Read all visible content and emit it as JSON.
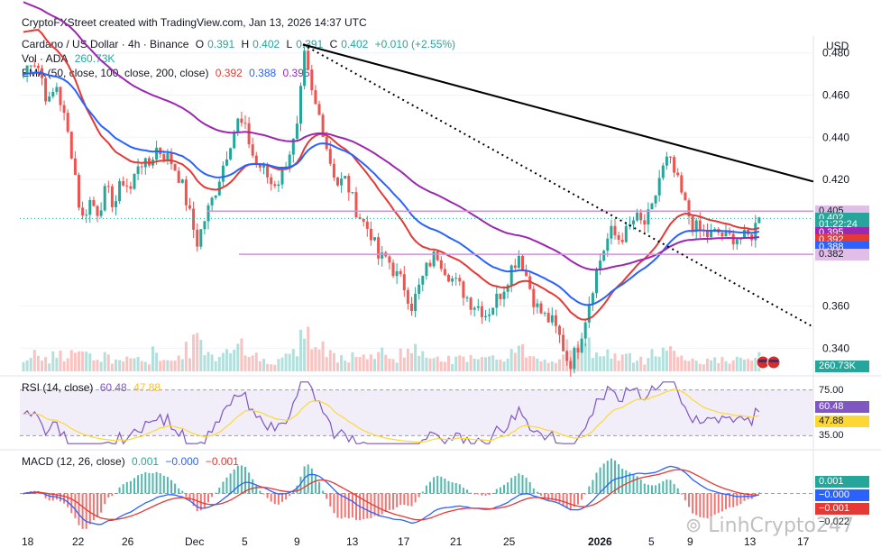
{
  "top_caption": "CryptoFXStreet created with TradingView.com, Jan 13, 2026 14:37 UTC",
  "legend": {
    "symbol": "Cardano / US Dollar · 4h · Binance",
    "o_label": "O",
    "o_val": "0.391",
    "h_label": "H",
    "h_val": "0.402",
    "l_label": "L",
    "l_val": "0.391",
    "c_label": "C",
    "c_val": "0.402",
    "change": "+0.010 (+2.55%)",
    "vol_label": "Vol · ADA",
    "vol_val": "260.73K",
    "ema_label": "EMA (50, close, 100, close, 200, close)",
    "ema50": "0.392",
    "ema100": "0.388",
    "ema200": "0.395"
  },
  "currency": "USD",
  "rsi_legend": {
    "label": "RSI (14, close)",
    "v1": "60.48",
    "v2": "47.88"
  },
  "macd_legend": {
    "label": "MACD (12, 26, close)",
    "v1": "0.001",
    "v2": "−0.000",
    "v3": "−0.001"
  },
  "watermark": "LinhCrypto247",
  "price_tags": [
    {
      "text": "0.405",
      "bg": "#e1bee7",
      "fg": "#131722",
      "price": 0.405
    },
    {
      "text": "0.402",
      "bg": "#26a69a",
      "fg": "#ffffff",
      "price": 0.4015
    },
    {
      "text": "01:22:24",
      "bg": "#26a69a",
      "fg": "#ffffff",
      "price": 0.3985
    },
    {
      "text": "0.395",
      "bg": "#9c27b0",
      "fg": "#ffffff",
      "price": 0.395
    },
    {
      "text": "0.392",
      "bg": "#e53935",
      "fg": "#ffffff",
      "price": 0.3915
    },
    {
      "text": "0.388",
      "bg": "#2962ff",
      "fg": "#ffffff",
      "price": 0.388
    },
    {
      "text": "0.382",
      "bg": "#e1bee7",
      "fg": "#131722",
      "price": 0.3845
    }
  ],
  "vol_tag": "260.73K",
  "rsi_tags": [
    {
      "text": "75.00",
      "bg": "#ffffff",
      "fg": "#131722"
    },
    {
      "text": "60.48",
      "bg": "#7e57c2",
      "fg": "#ffffff"
    },
    {
      "text": "47.88",
      "bg": "#fdd835",
      "fg": "#131722"
    },
    {
      "text": "35.00",
      "bg": "#ffffff",
      "fg": "#131722"
    }
  ],
  "macd_tags": [
    {
      "text": "0.001",
      "bg": "#26a69a",
      "fg": "#ffffff"
    },
    {
      "text": "−0.000",
      "bg": "#2962ff",
      "fg": "#ffffff"
    },
    {
      "text": "−0.001",
      "bg": "#e53935",
      "fg": "#ffffff"
    },
    {
      "text": "−0.022",
      "bg": "#ffffff",
      "fg": "#131722"
    }
  ],
  "chart_data": {
    "type": "candlestick",
    "y_ticks": [
      0.48,
      0.46,
      0.44,
      0.42,
      0.36,
      0.34
    ],
    "y_tick_labels": [
      "0.480",
      "0.460",
      "0.440",
      "0.420",
      "0.360",
      "0.340"
    ],
    "ylim": [
      0.329,
      0.488
    ],
    "x_labels": [
      "18",
      "22",
      "26",
      "Dec",
      "5",
      "9",
      "13",
      "17",
      "21",
      "25",
      "2026",
      "5",
      "9",
      "13",
      "17"
    ],
    "close_path": [
      0.47,
      0.478,
      0.472,
      0.455,
      0.465,
      0.448,
      0.43,
      0.4,
      0.41,
      0.405,
      0.415,
      0.408,
      0.42,
      0.415,
      0.43,
      0.425,
      0.435,
      0.432,
      0.428,
      0.42,
      0.405,
      0.39,
      0.402,
      0.412,
      0.425,
      0.438,
      0.448,
      0.442,
      0.428,
      0.425,
      0.418,
      0.42,
      0.432,
      0.44,
      0.478,
      0.458,
      0.448,
      0.43,
      0.418,
      0.42,
      0.408,
      0.4,
      0.395,
      0.382,
      0.383,
      0.375,
      0.37,
      0.36,
      0.37,
      0.38,
      0.385,
      0.378,
      0.372,
      0.368,
      0.362,
      0.36,
      0.356,
      0.362,
      0.368,
      0.378,
      0.385,
      0.372,
      0.36,
      0.355,
      0.352,
      0.344,
      0.332,
      0.34,
      0.355,
      0.372,
      0.385,
      0.395,
      0.392,
      0.395,
      0.402,
      0.398,
      0.405,
      0.422,
      0.43,
      0.42,
      0.408,
      0.398,
      0.395,
      0.393,
      0.395,
      0.392,
      0.393,
      0.392,
      0.393,
      0.402
    ],
    "volume_path": [
      0.3,
      0.5,
      0.4,
      0.3,
      0.6,
      0.4,
      0.5,
      0.7,
      0.4,
      0.3,
      0.4,
      0.3,
      0.3,
      0.4,
      0.3,
      0.3,
      0.5,
      0.4,
      0.3,
      0.4,
      0.6,
      0.8,
      0.5,
      0.4,
      0.5,
      0.7,
      0.9,
      0.5,
      0.4,
      0.3,
      0.3,
      0.4,
      0.4,
      0.5,
      1.0,
      0.7,
      0.6,
      0.5,
      0.4,
      0.4,
      0.5,
      0.4,
      0.4,
      0.5,
      0.4,
      0.4,
      0.5,
      0.6,
      0.4,
      0.4,
      0.5,
      0.4,
      0.3,
      0.4,
      0.4,
      0.3,
      0.3,
      0.4,
      0.4,
      0.5,
      0.6,
      0.5,
      0.4,
      0.4,
      0.3,
      0.5,
      0.8,
      0.6,
      0.7,
      0.6,
      0.5,
      0.5,
      0.4,
      0.4,
      0.3,
      0.3,
      0.5,
      0.6,
      0.7,
      0.5,
      0.4,
      0.3,
      0.3,
      0.3,
      0.3,
      0.3,
      0.3,
      0.3,
      0.3,
      0.4
    ],
    "series": [
      {
        "name": "EMA 50",
        "color": "#e53935"
      },
      {
        "name": "EMA 100",
        "color": "#2962ff"
      },
      {
        "name": "EMA 200",
        "color": "#9c27b0"
      }
    ],
    "rsi": {
      "levels": [
        75,
        35
      ],
      "ylim": [
        25,
        85
      ]
    },
    "macd": {
      "ylim": [
        -0.03,
        0.03
      ]
    },
    "colors": {
      "up": "#26a69a",
      "down": "#ef5350",
      "grid": "#f0f3fa",
      "trend": "#000000"
    }
  }
}
